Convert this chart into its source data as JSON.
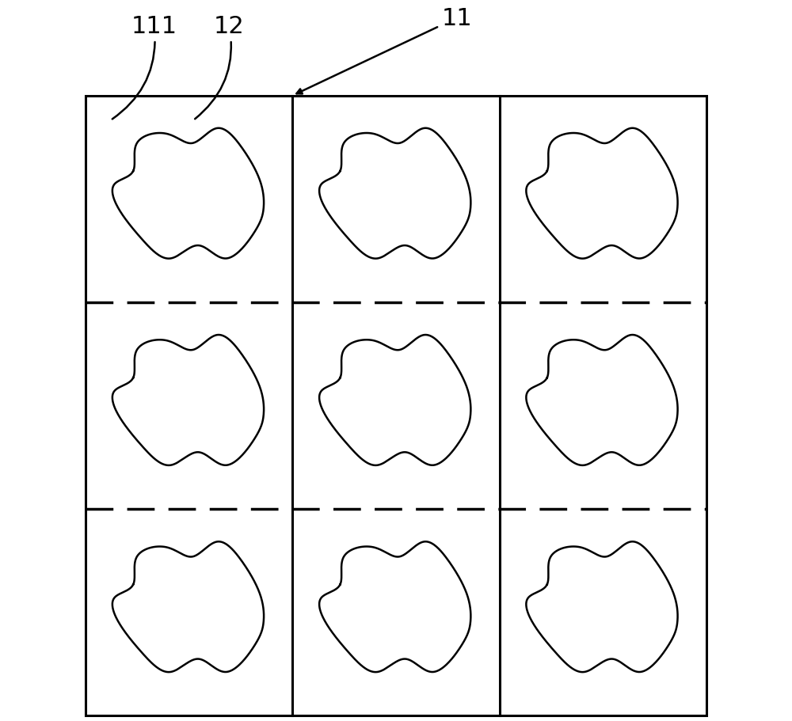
{
  "figure_width": 10.0,
  "figure_height": 9.12,
  "dpi": 100,
  "background_color": "#ffffff",
  "outer_border_color": "#000000",
  "outer_border_lw": 2.2,
  "solid_divider_color": "#000000",
  "solid_divider_lw": 2.2,
  "dashed_divider_color": "#000000",
  "dashed_divider_lw": 2.5,
  "dashed_pattern": [
    10,
    5
  ],
  "shape_color": "#000000",
  "shape_lw": 1.8,
  "label_111": "111",
  "label_12": "12",
  "label_11": "11",
  "label_fontsize": 22,
  "annotation_color": "#000000"
}
